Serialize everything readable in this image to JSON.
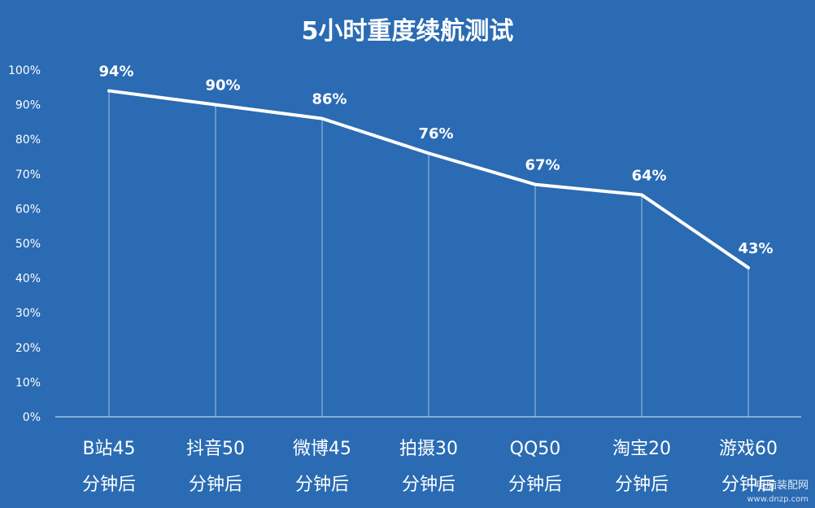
{
  "chart_data": {
    "type": "line",
    "title": "5小时重度续航测试",
    "categories": [
      [
        "B站45",
        "分钟后"
      ],
      [
        "抖音50",
        "分钟后"
      ],
      [
        "微博45",
        "分钟后"
      ],
      [
        "拍摄30",
        "分钟后"
      ],
      [
        "QQ50",
        "分钟后"
      ],
      [
        "淘宝20",
        "分钟后"
      ],
      [
        "游戏60",
        "分钟后"
      ]
    ],
    "values": [
      94,
      90,
      86,
      76,
      67,
      64,
      43
    ],
    "data_labels": [
      "94%",
      "90%",
      "86%",
      "76%",
      "67%",
      "64%",
      "43%"
    ],
    "y_ticks": [
      "0%",
      "10%",
      "20%",
      "30%",
      "40%",
      "50%",
      "60%",
      "70%",
      "80%",
      "90%",
      "100%"
    ],
    "ylim": [
      0,
      100
    ],
    "xlabel": "",
    "ylabel": "",
    "grid": false,
    "legend": "none",
    "colors": {
      "background": "#2a6bb3",
      "line": "#ffffff",
      "guides": "#b9d3ef",
      "text": "#ffffff"
    }
  },
  "watermark": {
    "main": "电脑装配网",
    "sub": "www.dnzp.com"
  }
}
